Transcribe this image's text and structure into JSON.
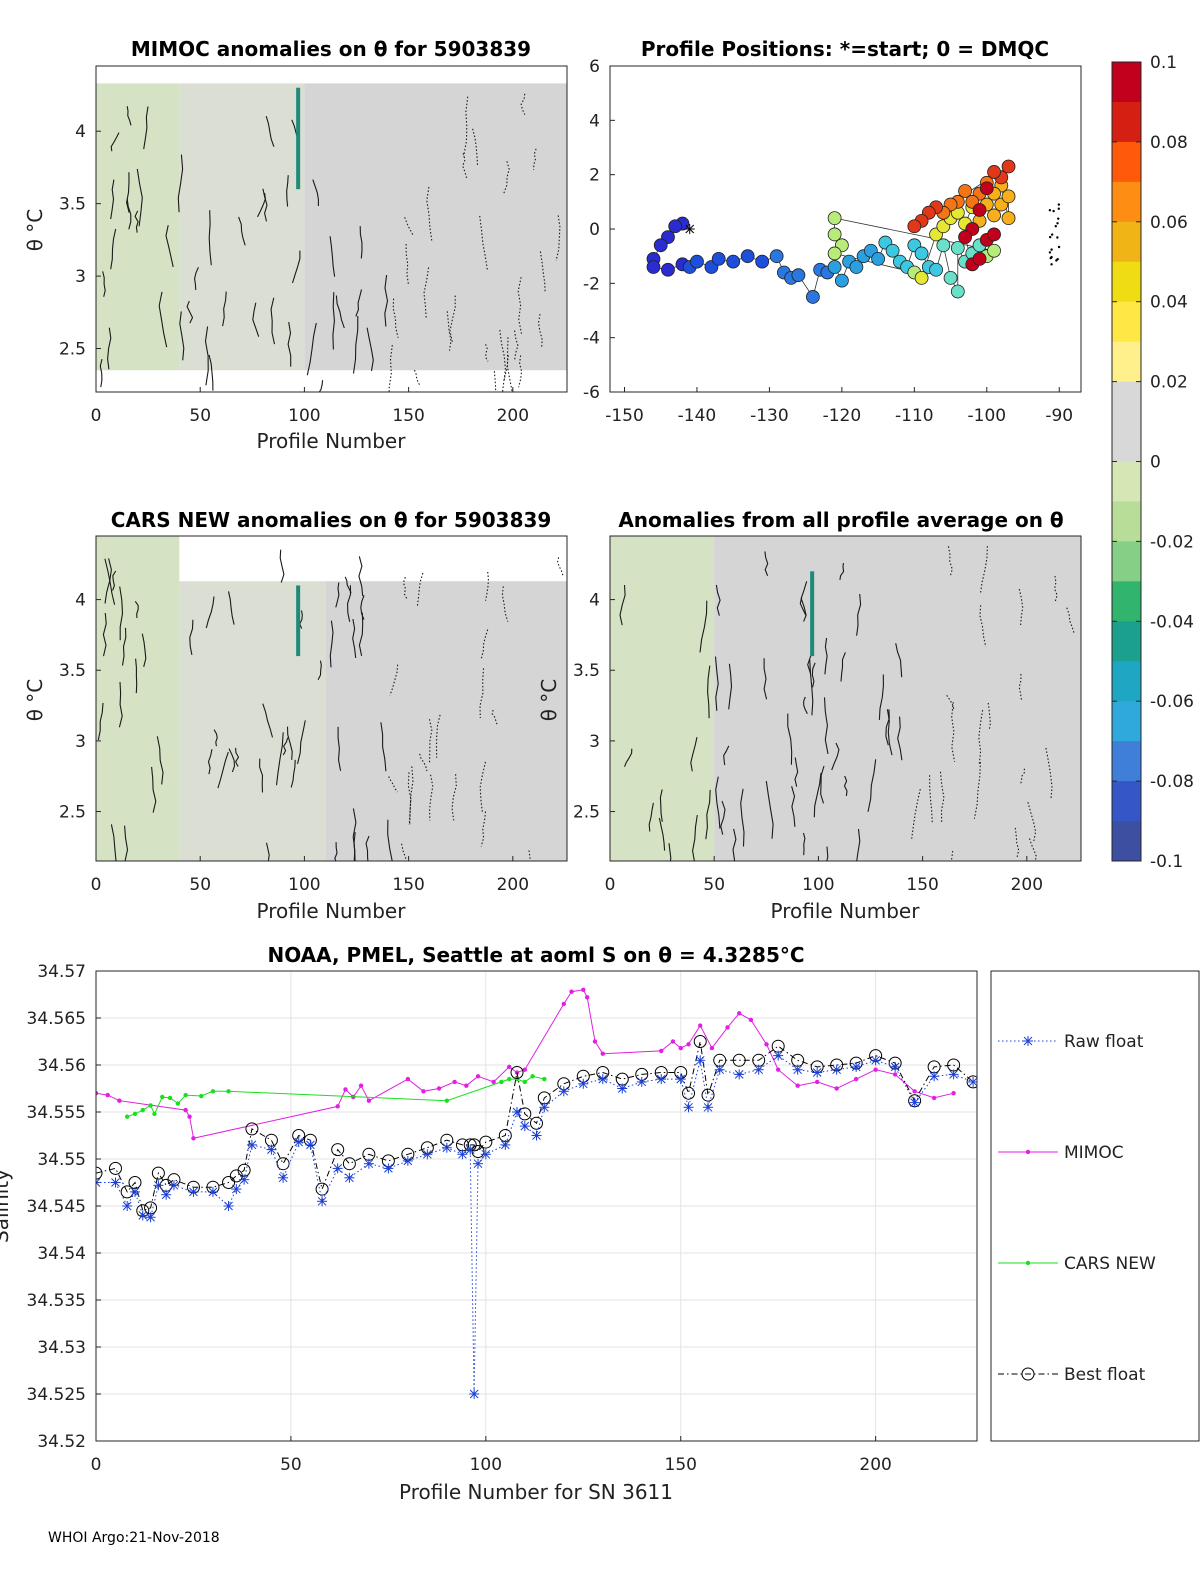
{
  "chart_data": [
    {
      "type": "heatmap",
      "title": "MIMOC anomalies on θ  for 5903839",
      "xlabel": "Profile Number",
      "ylabel": "θ °C",
      "xlim": [
        0,
        226
      ],
      "ylim": [
        2.2,
        4.45
      ],
      "xticks": [
        0,
        50,
        100,
        150,
        200
      ],
      "yticks": [
        2.5,
        3,
        3.5,
        4
      ],
      "color_regions": [
        {
          "x": [
            0,
            40
          ],
          "y": [
            2.35,
            4.33
          ],
          "color": "#d6e2c4"
        },
        {
          "x": [
            40,
            100
          ],
          "y": [
            2.35,
            4.33
          ],
          "color": "#dbdfd3"
        },
        {
          "x": [
            100,
            226
          ],
          "y": [
            2.35,
            4.33
          ],
          "color": "#d5d5d5"
        }
      ],
      "highlight_column": {
        "x": 97,
        "y": [
          3.6,
          4.3
        ],
        "color": "#1f8a78"
      }
    },
    {
      "type": "scatter",
      "title": "Profile Positions: *=start; 0 = DMQC",
      "xlim": [
        -152,
        -87
      ],
      "ylim": [
        -6,
        6
      ],
      "xticks": [
        -150,
        -140,
        -130,
        -120,
        -110,
        -100,
        -90
      ],
      "yticks": [
        -6,
        -4,
        -2,
        0,
        2,
        4,
        6
      ],
      "start_marker": [
        -141,
        0.0
      ],
      "points": [
        [
          -142,
          0.2
        ],
        [
          -143,
          0.1
        ],
        [
          -144,
          -0.3
        ],
        [
          -145,
          -0.6
        ],
        [
          -146,
          -1.1
        ],
        [
          -146,
          -1.4
        ],
        [
          -144,
          -1.5
        ],
        [
          -142,
          -1.3
        ],
        [
          -141,
          -1.4
        ],
        [
          -140,
          -1.2
        ],
        [
          -138,
          -1.4
        ],
        [
          -137,
          -1.1
        ],
        [
          -135,
          -1.2
        ],
        [
          -133,
          -1.0
        ],
        [
          -131,
          -1.2
        ],
        [
          -129,
          -1.0
        ],
        [
          -128,
          -1.6
        ],
        [
          -127,
          -1.8
        ],
        [
          -126,
          -1.7
        ],
        [
          -124,
          -2.5
        ],
        [
          -123,
          -1.5
        ],
        [
          -122,
          -1.6
        ],
        [
          -121,
          -1.4
        ],
        [
          -120,
          -1.9
        ],
        [
          -119,
          -1.2
        ],
        [
          -118,
          -1.4
        ],
        [
          -117,
          -1.0
        ],
        [
          -116,
          -0.8
        ],
        [
          -115,
          -1.1
        ],
        [
          -114,
          -0.5
        ],
        [
          -113,
          -0.8
        ],
        [
          -112,
          -1.2
        ],
        [
          -111,
          -1.4
        ],
        [
          -110,
          -0.6
        ],
        [
          -109,
          -0.9
        ],
        [
          -108,
          -1.4
        ],
        [
          -107,
          -1.5
        ],
        [
          -106,
          -0.6
        ],
        [
          -105,
          -1.8
        ],
        [
          -104,
          -2.3
        ],
        [
          -104,
          -0.7
        ],
        [
          -103,
          -1.2
        ],
        [
          -102,
          -0.9
        ],
        [
          -101,
          -0.6
        ],
        [
          -100,
          -1.0
        ],
        [
          -99,
          -0.8
        ],
        [
          -121,
          0.4
        ],
        [
          -121,
          -0.2
        ],
        [
          -120,
          -0.6
        ],
        [
          -121,
          -0.9
        ],
        [
          -110,
          -1.6
        ],
        [
          -109,
          -1.8
        ],
        [
          -107,
          -0.2
        ],
        [
          -106,
          0.1
        ],
        [
          -105,
          0.4
        ],
        [
          -104,
          0.6
        ],
        [
          -103,
          0.2
        ],
        [
          -102,
          0.8
        ],
        [
          -101,
          0.3
        ],
        [
          -100,
          0.9
        ],
        [
          -99,
          0.5
        ],
        [
          -98,
          0.9
        ],
        [
          -97,
          1.2
        ],
        [
          -97,
          0.4
        ],
        [
          -98,
          1.6
        ],
        [
          -99,
          1.3
        ],
        [
          -100,
          1.7
        ],
        [
          -101,
          1.3
        ],
        [
          -102,
          1.0
        ],
        [
          -103,
          1.4
        ],
        [
          -104,
          1.0
        ],
        [
          -105,
          0.9
        ],
        [
          -106,
          0.6
        ],
        [
          -107,
          0.8
        ],
        [
          -108,
          0.6
        ],
        [
          -109,
          0.3
        ],
        [
          -110,
          0.1
        ],
        [
          -97,
          2.3
        ],
        [
          -98,
          1.9
        ],
        [
          -99,
          2.1
        ],
        [
          -100,
          1.5
        ],
        [
          -101,
          0.7
        ],
        [
          -102,
          0.0
        ],
        [
          -103,
          -0.3
        ],
        [
          -102,
          -1.3
        ],
        [
          -101,
          -1.1
        ],
        [
          -100,
          -0.4
        ],
        [
          -99,
          -0.2
        ]
      ]
    },
    {
      "type": "heatmap",
      "title": "CARS NEW anomalies on θ for 5903839",
      "xlabel": "Profile Number",
      "ylabel": "θ °C",
      "xlim": [
        0,
        226
      ],
      "ylim": [
        2.15,
        4.45
      ],
      "xticks": [
        0,
        50,
        100,
        150,
        200
      ],
      "yticks": [
        2.5,
        3,
        3.5,
        4
      ],
      "color_regions": [
        {
          "x": [
            0,
            40
          ],
          "y": [
            2.15,
            4.45
          ],
          "color": "#d6e2c4"
        },
        {
          "x": [
            40,
            110
          ],
          "y": [
            2.15,
            4.13
          ],
          "color": "#dbdfd3"
        },
        {
          "x": [
            110,
            226
          ],
          "y": [
            2.15,
            4.13
          ],
          "color": "#d5d5d5"
        }
      ],
      "highlight_column": {
        "x": 97,
        "y": [
          3.6,
          4.1
        ],
        "color": "#1f8a78"
      }
    },
    {
      "type": "heatmap",
      "title": "Anomalies from all profile average on θ",
      "xlabel": "Profile Number",
      "ylabel": "θ °C",
      "xlim": [
        0,
        226
      ],
      "ylim": [
        2.15,
        4.45
      ],
      "xticks": [
        0,
        50,
        100,
        150,
        200
      ],
      "yticks": [
        2.5,
        3,
        3.5,
        4
      ],
      "color_regions": [
        {
          "x": [
            0,
            50
          ],
          "y": [
            2.15,
            4.45
          ],
          "color": "#d6e2c4"
        },
        {
          "x": [
            50,
            226
          ],
          "y": [
            2.15,
            4.45
          ],
          "color": "#d5d5d5"
        }
      ],
      "highlight_column": {
        "x": 97,
        "y": [
          3.6,
          4.2
        ],
        "color": "#1f8a78"
      }
    },
    {
      "type": "colorbar",
      "ticks": [
        0.1,
        0.08,
        0.06,
        0.04,
        0.02,
        0,
        -0.02,
        -0.04,
        -0.06,
        -0.08,
        -0.1
      ],
      "tick_labels": [
        "0.1",
        "0.08",
        "0.06",
        "0.04",
        "0.02",
        "0",
        "-0.02",
        "-0.04",
        "-0.06",
        "-0.08",
        "-0.1"
      ],
      "colors": [
        "#c0001c",
        "#d41f12",
        "#ff5a0a",
        "#fd8d13",
        "#f0b416",
        "#f0dc12",
        "#ffe845",
        "#fff08c",
        "#d8d8d8",
        "#d8d8d8",
        "#d5e7b5",
        "#b7dd98",
        "#86cf87",
        "#30b46e",
        "#1aa08c",
        "#1ea6c2",
        "#2fa9dc",
        "#3f7fd9",
        "#3556c6",
        "#3d4fa0"
      ]
    },
    {
      "type": "line",
      "title": "NOAA, PMEL, Seattle at aoml S on θ = 4.3285°C",
      "xlabel": "Profile Number for SN 3611",
      "ylabel": "Salinity",
      "xlim": [
        0,
        226
      ],
      "ylim": [
        34.52,
        34.57
      ],
      "xticks": [
        0,
        50,
        100,
        150,
        200
      ],
      "yticks": [
        34.52,
        34.525,
        34.53,
        34.535,
        34.54,
        34.545,
        34.55,
        34.555,
        34.56,
        34.565,
        34.57
      ],
      "ytick_labels": [
        "34.52",
        "34.525",
        "34.53",
        "34.535",
        "34.54",
        "34.545",
        "34.55",
        "34.555",
        "34.56",
        "34.565",
        "34.57"
      ],
      "series": [
        {
          "name": "Raw float",
          "style": "dotted-star",
          "color": "#1a3fd6",
          "x": [
            0,
            5,
            8,
            10,
            12,
            14,
            16,
            18,
            20,
            25,
            30,
            34,
            36,
            38,
            40,
            45,
            48,
            52,
            55,
            58,
            62,
            65,
            70,
            75,
            80,
            85,
            90,
            94,
            96,
            97,
            98,
            100,
            105,
            108,
            110,
            113,
            115,
            120,
            125,
            130,
            135,
            140,
            145,
            150,
            152,
            155,
            157,
            160,
            165,
            170,
            175,
            180,
            185,
            190,
            195,
            200,
            205,
            210,
            215,
            220,
            225
          ],
          "y": [
            34.5475,
            34.5475,
            34.545,
            34.5465,
            34.544,
            34.5438,
            34.5472,
            34.5462,
            34.5472,
            34.5465,
            34.5465,
            34.545,
            34.5468,
            34.5478,
            34.5515,
            34.551,
            34.548,
            34.5518,
            34.5515,
            34.5455,
            34.549,
            34.548,
            34.5495,
            34.549,
            34.5498,
            34.5505,
            34.5512,
            34.5505,
            34.551,
            34.525,
            34.5495,
            34.5505,
            34.5515,
            34.555,
            34.5535,
            34.5525,
            34.5555,
            34.5572,
            34.558,
            34.5585,
            34.5575,
            34.5582,
            34.5585,
            34.5585,
            34.5555,
            34.5605,
            34.5555,
            34.5595,
            34.559,
            34.5595,
            34.561,
            34.5595,
            34.5592,
            34.5595,
            34.5598,
            34.5605,
            34.5598,
            34.556,
            34.5588,
            34.559,
            34.5582
          ]
        },
        {
          "name": "MIMOC",
          "style": "line-dot",
          "color": "#e21fe3",
          "x": [
            0,
            3,
            6,
            23,
            24,
            25,
            62,
            64,
            66,
            68,
            70,
            80,
            84,
            88,
            92,
            95,
            98,
            102,
            106,
            108,
            110,
            120,
            122,
            125,
            126,
            128,
            130,
            145,
            148,
            150,
            152,
            155,
            158,
            162,
            165,
            168,
            172,
            175,
            180,
            185,
            190,
            195,
            200,
            205,
            210,
            215,
            220
          ],
          "y": [
            34.557,
            34.5568,
            34.5562,
            34.5552,
            34.5545,
            34.5522,
            34.5556,
            34.5574,
            34.5566,
            34.5578,
            34.5562,
            34.5585,
            34.5572,
            34.5575,
            34.5582,
            34.5578,
            34.5588,
            34.5582,
            34.5598,
            34.5592,
            34.5595,
            34.5665,
            34.5678,
            34.568,
            34.5672,
            34.5625,
            34.5612,
            34.5615,
            34.5625,
            34.5618,
            34.5622,
            34.5642,
            34.5618,
            34.564,
            34.5655,
            34.5648,
            34.5622,
            34.5595,
            34.5578,
            34.5582,
            34.5575,
            34.5585,
            34.5595,
            34.559,
            34.5572,
            34.5565,
            34.557
          ]
        },
        {
          "name": "CARS NEW",
          "style": "line-dot",
          "color": "#19e01c",
          "x": [
            8,
            10,
            12,
            14,
            15,
            17,
            19,
            21,
            23,
            27,
            30,
            34,
            90,
            104,
            106,
            108,
            110,
            112,
            115
          ],
          "y": [
            34.5545,
            34.5548,
            34.5552,
            34.5557,
            34.5548,
            34.5566,
            34.5565,
            34.5559,
            34.5568,
            34.5567,
            34.5572,
            34.5572,
            34.5562,
            34.5582,
            34.5585,
            34.5585,
            34.5582,
            34.5588,
            34.5585
          ]
        },
        {
          "name": "Best float",
          "style": "dashdot-circle",
          "color": "#000000",
          "x": [
            0,
            5,
            8,
            10,
            12,
            14,
            16,
            18,
            20,
            25,
            30,
            34,
            36,
            38,
            40,
            45,
            48,
            52,
            55,
            58,
            62,
            65,
            70,
            75,
            80,
            85,
            90,
            94,
            96,
            97,
            98,
            100,
            105,
            108,
            110,
            113,
            115,
            120,
            125,
            130,
            135,
            140,
            145,
            150,
            152,
            155,
            157,
            160,
            165,
            170,
            175,
            180,
            185,
            190,
            195,
            200,
            205,
            210,
            215,
            220,
            225
          ],
          "y": [
            34.5485,
            34.549,
            34.5465,
            34.5475,
            34.5445,
            34.5448,
            34.5485,
            34.5472,
            34.5478,
            34.547,
            34.547,
            34.5475,
            34.5482,
            34.5488,
            34.5532,
            34.552,
            34.5495,
            34.5525,
            34.552,
            34.5468,
            34.551,
            34.5495,
            34.5505,
            34.5498,
            34.5505,
            34.5512,
            34.552,
            34.5515,
            34.5515,
            34.5515,
            34.5508,
            34.5518,
            34.5525,
            34.5592,
            34.5548,
            34.5538,
            34.5565,
            34.558,
            34.5588,
            34.5592,
            34.5585,
            34.559,
            34.5592,
            34.5592,
            34.557,
            34.5625,
            34.5568,
            34.5605,
            34.5605,
            34.5605,
            34.562,
            34.5605,
            34.5598,
            34.56,
            34.5602,
            34.561,
            34.5602,
            34.5562,
            34.5598,
            34.56,
            34.5582
          ]
        }
      ],
      "legend_position": "outside-right"
    }
  ],
  "footer": "WHOI Argo:21-Nov-2018"
}
